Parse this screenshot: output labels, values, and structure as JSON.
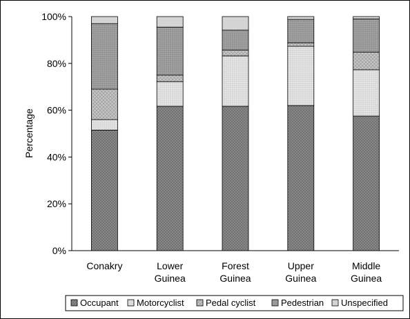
{
  "chart_data": {
    "type": "bar",
    "stacked": true,
    "categories": [
      [
        "Conakry"
      ],
      [
        "Lower",
        "Guinea"
      ],
      [
        "Forest",
        "Guinea"
      ],
      [
        "Upper",
        "Guinea"
      ],
      [
        "Middle",
        "Guinea"
      ]
    ],
    "ylabel": "Percentage",
    "ylim": [
      0,
      100
    ],
    "yticks": [
      "0%",
      "20%",
      "40%",
      "60%",
      "80%",
      "100%"
    ],
    "legend_position": "bottom-right",
    "series": [
      {
        "name": "Occupant",
        "color": "#8c8c8c",
        "pattern": "crosshatch-dark",
        "values": [
          51.5,
          61.7,
          61.7,
          62.0,
          57.5
        ]
      },
      {
        "name": "Motorcyclist",
        "color": "#dcdcdc",
        "pattern": "dots-light",
        "values": [
          4.5,
          10.5,
          21.5,
          25.3,
          19.8
        ]
      },
      {
        "name": "Pedal cyclist",
        "color": "#bdbdbd",
        "pattern": "crosshatch-light",
        "values": [
          13.0,
          2.8,
          2.5,
          1.5,
          7.5
        ]
      },
      {
        "name": "Pedestrian",
        "color": "#9a9a9a",
        "pattern": "dots-medium",
        "values": [
          28.0,
          20.5,
          8.5,
          10.0,
          14.2
        ]
      },
      {
        "name": "Unspecified",
        "color": "#d4d4d4",
        "pattern": "solid-light",
        "values": [
          3.0,
          4.5,
          5.8,
          1.2,
          1.0
        ]
      }
    ]
  }
}
